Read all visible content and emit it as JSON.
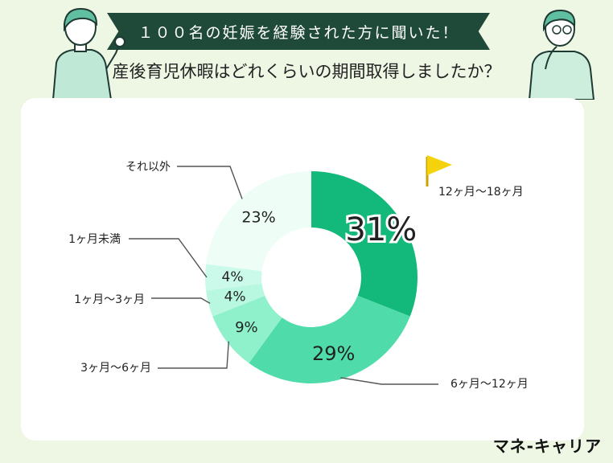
{
  "header": {
    "banner": "１００名の妊娠を経験された方に聞いた！",
    "question": "産後育児休暇はどれくらいの期間取得しましたか？"
  },
  "brand": "マネ-キャリア",
  "chart_data": {
    "type": "pie",
    "donut": true,
    "categories": [
      "12ヶ月〜18ヶ月",
      "6ヶ月〜12ヶ月",
      "3ヶ月〜6ヶ月",
      "1ヶ月〜3ヶ月",
      "1ヶ月未満",
      "それ以外"
    ],
    "values": [
      31,
      29,
      9,
      4,
      4,
      23
    ],
    "value_labels": [
      "31%",
      "29%",
      "9%",
      "4%",
      "4%",
      "23%"
    ],
    "colors": [
      "#12b97a",
      "#4fdcaa",
      "#8ff0cc",
      "#b8f8e0",
      "#ccfaea",
      "#eefdf6"
    ],
    "highlight": "12ヶ月〜18ヶ月"
  }
}
